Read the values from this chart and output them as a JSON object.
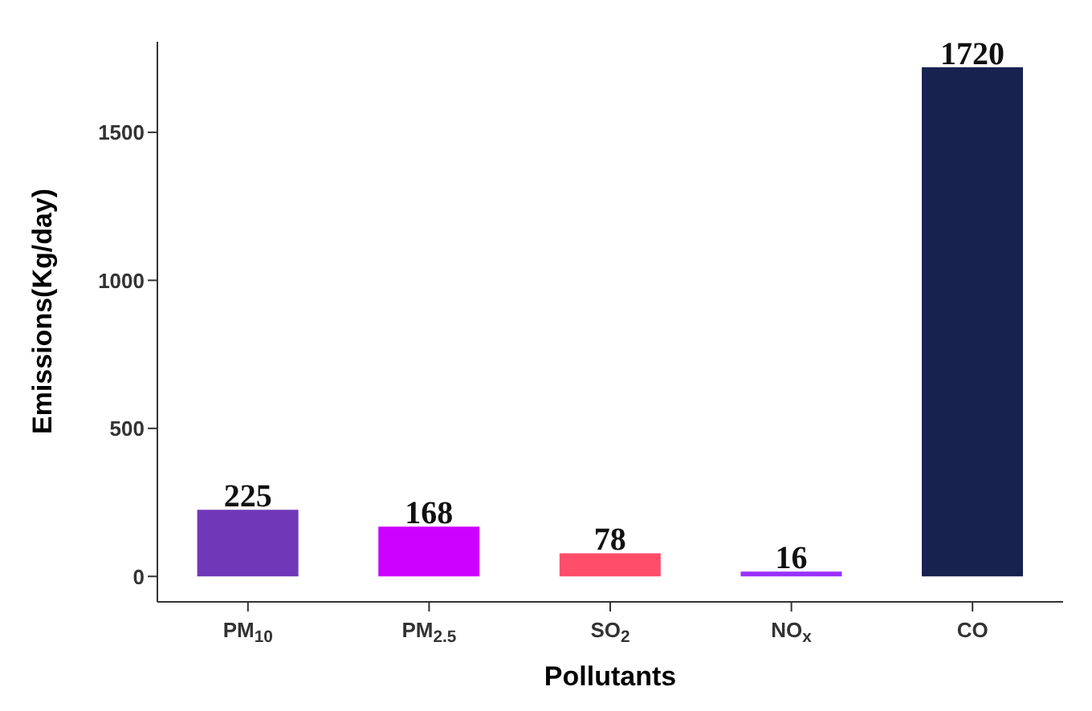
{
  "chart_data": {
    "type": "bar",
    "xlabel": "Pollutants",
    "ylabel": "Emissions(Kg/day)",
    "categories": [
      "PM$_{10}$",
      "PM$_{2.5}$",
      "SO$_{2}$",
      "NO$_{x}$",
      "CO"
    ],
    "values": [
      225,
      168,
      78,
      16,
      1720
    ],
    "colors": [
      "#7038b8",
      "#cc00ff",
      "#ff4d6a",
      "#9b30ff",
      "#18224f"
    ],
    "ylim": [
      -86,
      1806
    ],
    "yticks": [
      0,
      500,
      1000,
      1500
    ],
    "data_labels": true,
    "grid": false,
    "legend": false
  }
}
